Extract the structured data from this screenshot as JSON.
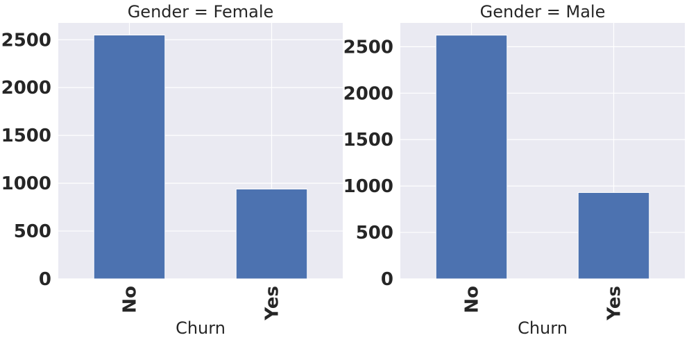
{
  "colors": {
    "bar": "#4c72b0",
    "plot_background": "#eaeaf2",
    "grid": "#ffffff"
  },
  "chart_data": [
    {
      "type": "bar",
      "title": "Gender = Female",
      "xlabel": "Churn",
      "ylabel": "",
      "categories": [
        "No",
        "Yes"
      ],
      "values": [
        2549,
        939
      ],
      "ylim": [
        0,
        2676
      ],
      "yticks": [
        0,
        500,
        1000,
        1500,
        2000,
        2500
      ],
      "grid": true,
      "legend": "none"
    },
    {
      "type": "bar",
      "title": "Gender = Male",
      "xlabel": "Churn",
      "ylabel": "",
      "categories": [
        "No",
        "Yes"
      ],
      "values": [
        2625,
        930
      ],
      "ylim": [
        0,
        2757
      ],
      "yticks": [
        0,
        500,
        1000,
        1500,
        2000,
        2500
      ],
      "grid": true,
      "legend": "none"
    }
  ]
}
